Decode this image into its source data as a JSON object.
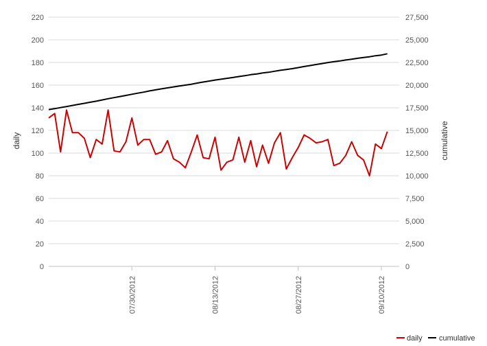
{
  "chart_data": {
    "type": "line",
    "xlabel": "",
    "ylabel_left": "daily",
    "ylabel_right": "cumulative",
    "ylim_left": [
      0,
      220
    ],
    "ylim_right": [
      0,
      27500
    ],
    "y_ticks_left": [
      "0",
      "20",
      "40",
      "60",
      "80",
      "100",
      "120",
      "140",
      "160",
      "180",
      "200",
      "220"
    ],
    "y_ticks_right": [
      "0",
      "2,500",
      "5,000",
      "7,500",
      "10,000",
      "12,500",
      "15,000",
      "17,500",
      "20,000",
      "22,500",
      "25,000",
      "27,500"
    ],
    "x_ticks": [
      "07/30/2012",
      "08/13/2012",
      "08/27/2012",
      "09/10/2012"
    ],
    "grid": true,
    "legend_position": "bottom-right",
    "dates": [
      "2012-07-16",
      "2012-07-17",
      "2012-07-18",
      "2012-07-19",
      "2012-07-20",
      "2012-07-21",
      "2012-07-22",
      "2012-07-23",
      "2012-07-24",
      "2012-07-25",
      "2012-07-26",
      "2012-07-27",
      "2012-07-28",
      "2012-07-29",
      "2012-07-30",
      "2012-07-31",
      "2012-08-01",
      "2012-08-02",
      "2012-08-03",
      "2012-08-04",
      "2012-08-05",
      "2012-08-06",
      "2012-08-07",
      "2012-08-08",
      "2012-08-09",
      "2012-08-10",
      "2012-08-11",
      "2012-08-12",
      "2012-08-13",
      "2012-08-14",
      "2012-08-15",
      "2012-08-16",
      "2012-08-17",
      "2012-08-18",
      "2012-08-19",
      "2012-08-20",
      "2012-08-21",
      "2012-08-22",
      "2012-08-23",
      "2012-08-24",
      "2012-08-25",
      "2012-08-26",
      "2012-08-27",
      "2012-08-28",
      "2012-08-29",
      "2012-08-30",
      "2012-08-31",
      "2012-09-01",
      "2012-09-02",
      "2012-09-03",
      "2012-09-04",
      "2012-09-05",
      "2012-09-06",
      "2012-09-07",
      "2012-09-08",
      "2012-09-09",
      "2012-09-10",
      "2012-09-11",
      "2012-09-12",
      "2012-09-13"
    ],
    "series": [
      {
        "name": "daily",
        "axis": "left",
        "color": "#cc0000",
        "values": [
          131,
          135,
          101,
          138,
          118,
          118,
          113,
          96,
          112,
          108,
          138,
          102,
          101,
          110,
          131,
          107,
          112,
          112,
          99,
          101,
          111,
          95,
          92,
          87,
          101,
          116,
          96,
          95,
          114,
          85,
          92,
          94,
          114,
          92,
          111,
          88,
          107,
          91,
          109,
          118,
          86,
          96,
          105,
          116,
          113,
          109,
          110,
          112,
          89,
          91,
          98,
          110,
          98,
          94,
          80,
          108,
          104,
          119,
          null,
          null
        ]
      },
      {
        "name": "cumulative",
        "axis": "right",
        "color": "#000000",
        "values": [
          17300,
          17400,
          17520,
          17640,
          17760,
          17880,
          17990,
          18110,
          18230,
          18360,
          18500,
          18620,
          18740,
          18860,
          18990,
          19110,
          19230,
          19360,
          19480,
          19590,
          19700,
          19800,
          19900,
          20000,
          20100,
          20230,
          20340,
          20450,
          20560,
          20650,
          20750,
          20840,
          20950,
          21040,
          21150,
          21230,
          21340,
          21420,
          21530,
          21640,
          21720,
          21820,
          21930,
          22050,
          22160,
          22270,
          22380,
          22490,
          22580,
          22670,
          22770,
          22860,
          22960,
          23050,
          23130,
          23240,
          23320,
          23460,
          null,
          null
        ]
      }
    ]
  }
}
